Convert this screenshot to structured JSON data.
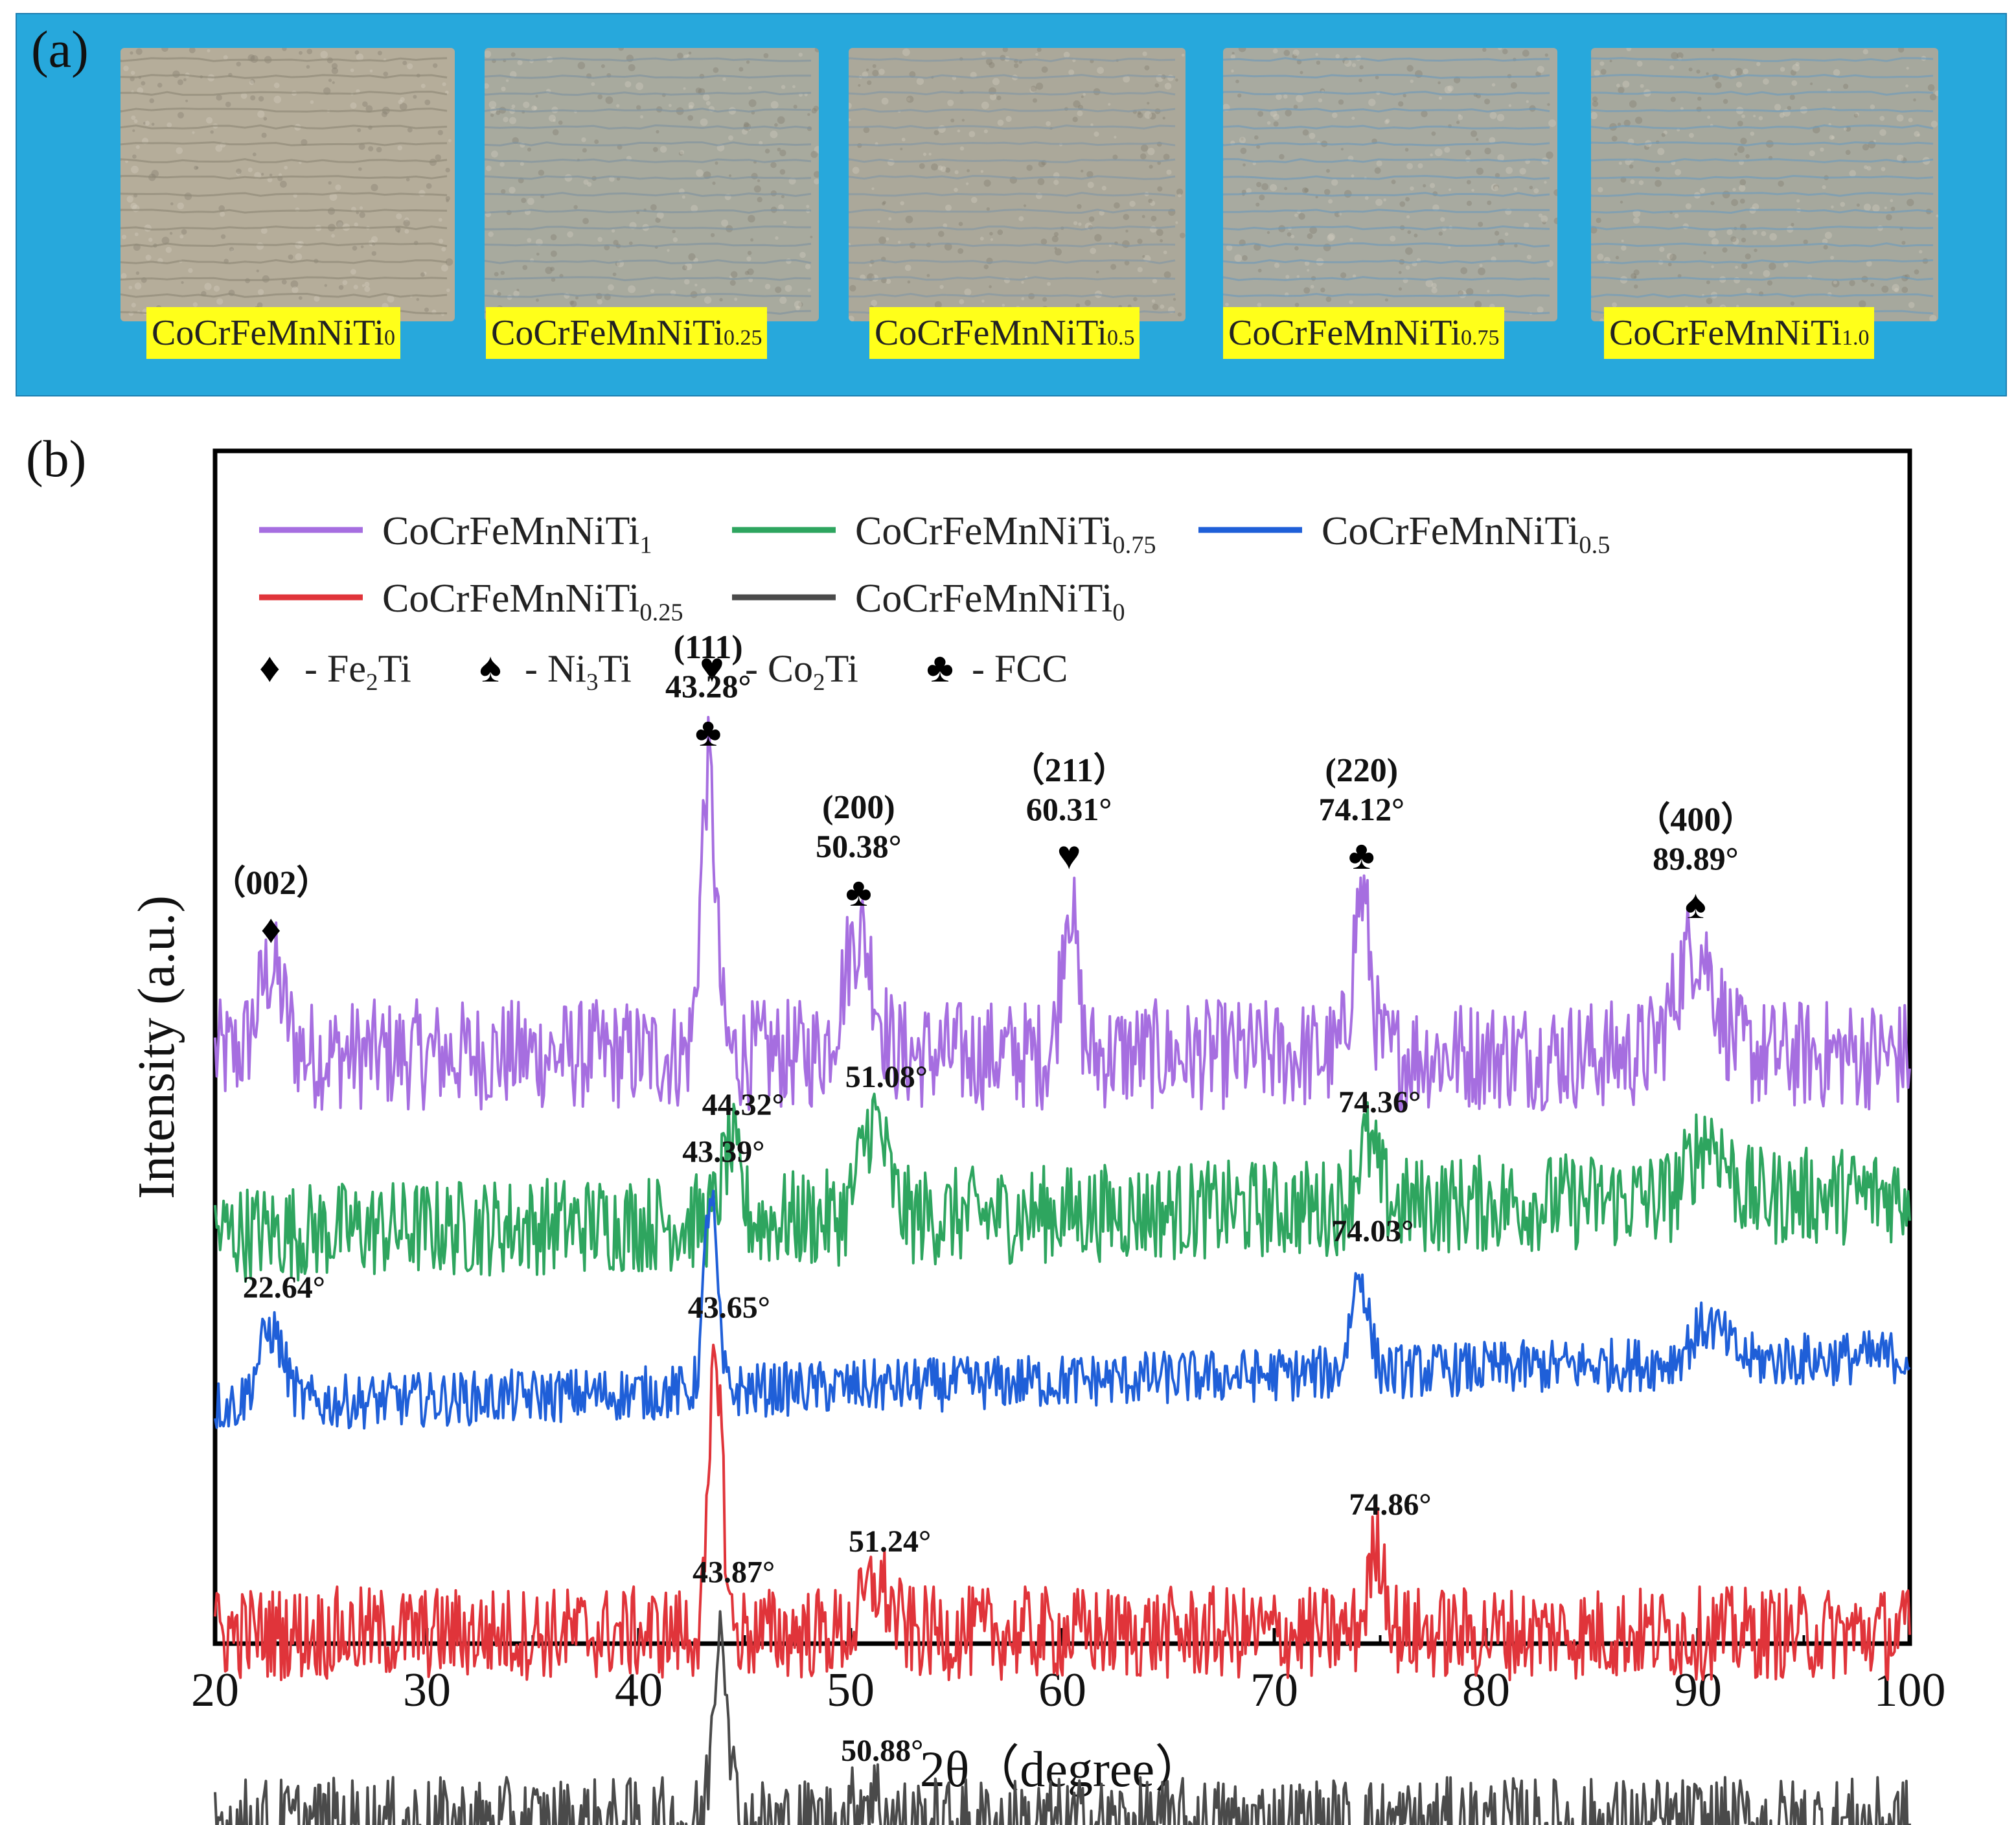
{
  "panel_a": {
    "label": "(a)",
    "samples": [
      {
        "name": "CoCrFeMnNiTi",
        "sub": "0",
        "tone": "#b5ad9a",
        "stripe": "#8f8877"
      },
      {
        "name": "CoCrFeMnNiTi",
        "sub": "0.25",
        "tone": "#a8aa9e",
        "stripe": "#7f93a0"
      },
      {
        "name": "CoCrFeMnNiTi",
        "sub": "0.5",
        "tone": "#aba89a",
        "stripe": "#8296a4"
      },
      {
        "name": "CoCrFeMnNiTi",
        "sub": "0.75",
        "tone": "#a8aaa0",
        "stripe": "#6f9ab8"
      },
      {
        "name": "CoCrFeMnNiTi",
        "sub": "1.0",
        "tone": "#a6a89d",
        "stripe": "#6e9bbb"
      }
    ]
  },
  "panel_b": {
    "label": "(b)"
  },
  "chart_data": {
    "type": "line",
    "xlabel": "2θ（degree）",
    "ylabel": "Intensity (a.u.)",
    "xlim": [
      20,
      100
    ],
    "xticks": [
      20,
      30,
      40,
      50,
      60,
      70,
      80,
      90,
      100
    ],
    "yticks": [],
    "legend": [
      {
        "base": "CoCrFeMnNiTi",
        "sub": "1",
        "color": "#a66ee0"
      },
      {
        "base": "CoCrFeMnNiTi",
        "sub": "0.75",
        "color": "#2ea55f"
      },
      {
        "base": "CoCrFeMnNiTi",
        "sub": "0.5",
        "color": "#1f5fd8"
      },
      {
        "base": "CoCrFeMnNiTi",
        "sub": "0.25",
        "color": "#e0343a"
      },
      {
        "base": "CoCrFeMnNiTi",
        "sub": "0",
        "color": "#4a4a4a"
      }
    ],
    "phase_key": [
      {
        "symbol": "♦",
        "text": "- Fe",
        "sub": "2",
        "text2": "Ti"
      },
      {
        "symbol": "♠",
        "text": "- Ni",
        "sub": "3",
        "text2": "Ti"
      },
      {
        "symbol": "♥",
        "text": "- Co",
        "sub": "2",
        "text2": "Ti"
      },
      {
        "symbol": "♣",
        "text": "- FCC",
        "sub": "",
        "text2": ""
      }
    ],
    "series": [
      {
        "name": "CoCrFeMnNiTi1",
        "color": "#a66ee0",
        "baseline": 3.8,
        "noise": 0.45,
        "slope": 0.0,
        "peaks": [
          [
            22.64,
            0.7,
            0.6
          ],
          [
            43.28,
            2.3,
            0.35
          ],
          [
            50.38,
            1.0,
            0.7
          ],
          [
            60.31,
            1.3,
            0.35
          ],
          [
            74.12,
            1.3,
            0.4
          ],
          [
            89.89,
            0.9,
            0.9
          ]
        ]
      },
      {
        "name": "CoCrFeMnNiTi0.75",
        "color": "#2ea55f",
        "baseline": 2.35,
        "noise": 0.4,
        "slope": 0.004,
        "peaks": [
          [
            44.32,
            0.6,
            0.4
          ],
          [
            51.08,
            0.8,
            0.6
          ],
          [
            74.36,
            0.5,
            0.5
          ],
          [
            90.5,
            0.5,
            0.8
          ]
        ]
      },
      {
        "name": "CoCrFeMnNiTi0.5",
        "color": "#1f5fd8",
        "baseline": 0.95,
        "noise": 0.22,
        "slope": 0.005,
        "peaks": [
          [
            22.64,
            0.6,
            0.6
          ],
          [
            43.39,
            1.6,
            0.3
          ],
          [
            74.03,
            0.8,
            0.4
          ],
          [
            90.5,
            0.3,
            0.8
          ]
        ]
      },
      {
        "name": "CoCrFeMnNiTi0.25",
        "color": "#e0343a",
        "baseline": -0.9,
        "noise": 0.38,
        "slope": 0.0,
        "peaks": [
          [
            43.65,
            2.3,
            0.3
          ],
          [
            51.24,
            0.4,
            0.6
          ],
          [
            74.86,
            0.7,
            0.4
          ]
        ]
      },
      {
        "name": "CoCrFeMnNiTi0",
        "color": "#4a4a4a",
        "baseline": -2.45,
        "noise": 0.38,
        "slope": 0.0,
        "peaks": [
          [
            43.87,
            1.7,
            0.35
          ],
          [
            50.88,
            0.25,
            0.6
          ]
        ]
      }
    ],
    "peak_markers": [
      {
        "x": 22.64,
        "hkl": "（002）",
        "angle": "",
        "symbol": "♦"
      },
      {
        "x": 43.28,
        "hkl": "(111)",
        "angle": "43.28°",
        "symbol": "♣"
      },
      {
        "x": 50.38,
        "hkl": "(200)",
        "angle": "50.38°",
        "symbol": "♣"
      },
      {
        "x": 60.31,
        "hkl": "（211）",
        "angle": "60.31°",
        "symbol": "♥"
      },
      {
        "x": 74.12,
        "hkl": "(220)",
        "angle": "74.12°",
        "symbol": "♣"
      },
      {
        "x": 89.89,
        "hkl": "（400）",
        "angle": "89.89°",
        "symbol": "♠"
      }
    ],
    "peak_labels": [
      {
        "series": "CoCrFeMnNiTi0.75",
        "x": 44.32,
        "text": "44.32°"
      },
      {
        "series": "CoCrFeMnNiTi0.75",
        "x": 51.08,
        "text": "51.08°"
      },
      {
        "series": "CoCrFeMnNiTi0.75",
        "x": 74.36,
        "text": "74.36°"
      },
      {
        "series": "CoCrFeMnNiTi0.5",
        "x": 22.64,
        "text": "22.64°"
      },
      {
        "series": "CoCrFeMnNiTi0.5",
        "x": 43.39,
        "text": "43.39°"
      },
      {
        "series": "CoCrFeMnNiTi0.5",
        "x": 74.03,
        "text": "74.03°"
      },
      {
        "series": "CoCrFeMnNiTi0.25",
        "x": 43.65,
        "text": "43.65°"
      },
      {
        "series": "CoCrFeMnNiTi0.25",
        "x": 51.24,
        "text": "51.24°"
      },
      {
        "series": "CoCrFeMnNiTi0.25",
        "x": 74.86,
        "text": "74.86°"
      },
      {
        "series": "CoCrFeMnNiTi0",
        "x": 43.87,
        "text": "43.87°"
      },
      {
        "series": "CoCrFeMnNiTi0",
        "x": 50.88,
        "text": "50.88°"
      }
    ]
  }
}
